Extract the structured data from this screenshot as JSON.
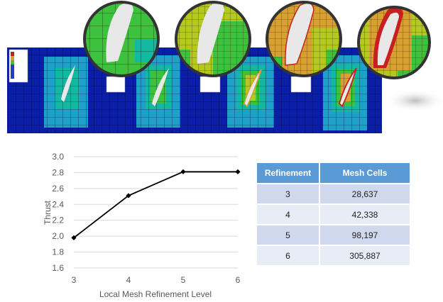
{
  "colors": {
    "line": "#000000",
    "grid": "#d9d9d9",
    "table_header": "#5b9bd5",
    "table_row_odd": "#cfd8ec",
    "table_row_even": "#e8ecf6",
    "mesh_background": "#0a1ea8",
    "mesh_coarse": "#1fa0c8",
    "mesh_medium": "#12b8a0",
    "mesh_fine": "#3cc23c",
    "mesh_finer": "#b4c81e",
    "mesh_finest": "#d8a030",
    "mesh_red": "#c82020",
    "airfoil": "#e8e8e8"
  },
  "mesh_images": [
    {
      "refinement_level": 3
    },
    {
      "refinement_level": 4
    },
    {
      "refinement_level": 5
    },
    {
      "refinement_level": 6
    }
  ],
  "chart_data": {
    "type": "line",
    "title": "",
    "xlabel": "Local Mesh Refinement Level",
    "ylabel": "Thrust",
    "x": [
      3,
      4,
      5,
      6
    ],
    "y": [
      1.98,
      2.51,
      2.81,
      2.81
    ],
    "xlim": [
      3,
      6
    ],
    "ylim": [
      1.6,
      3.0
    ],
    "xticks": [
      3,
      4,
      5,
      6
    ],
    "yticks": [
      "1.6",
      "1.8",
      "2.0",
      "2.2",
      "2.4",
      "2.6",
      "2.8",
      "3.0"
    ],
    "grid": "horizontal",
    "marker": "diamond",
    "legend": "none"
  },
  "table": {
    "headers": [
      "Refinement",
      "Mesh Cells"
    ],
    "rows": [
      [
        "3",
        "28,637"
      ],
      [
        "4",
        "42,338"
      ],
      [
        "5",
        "98,197"
      ],
      [
        "6",
        "305,887"
      ]
    ]
  }
}
